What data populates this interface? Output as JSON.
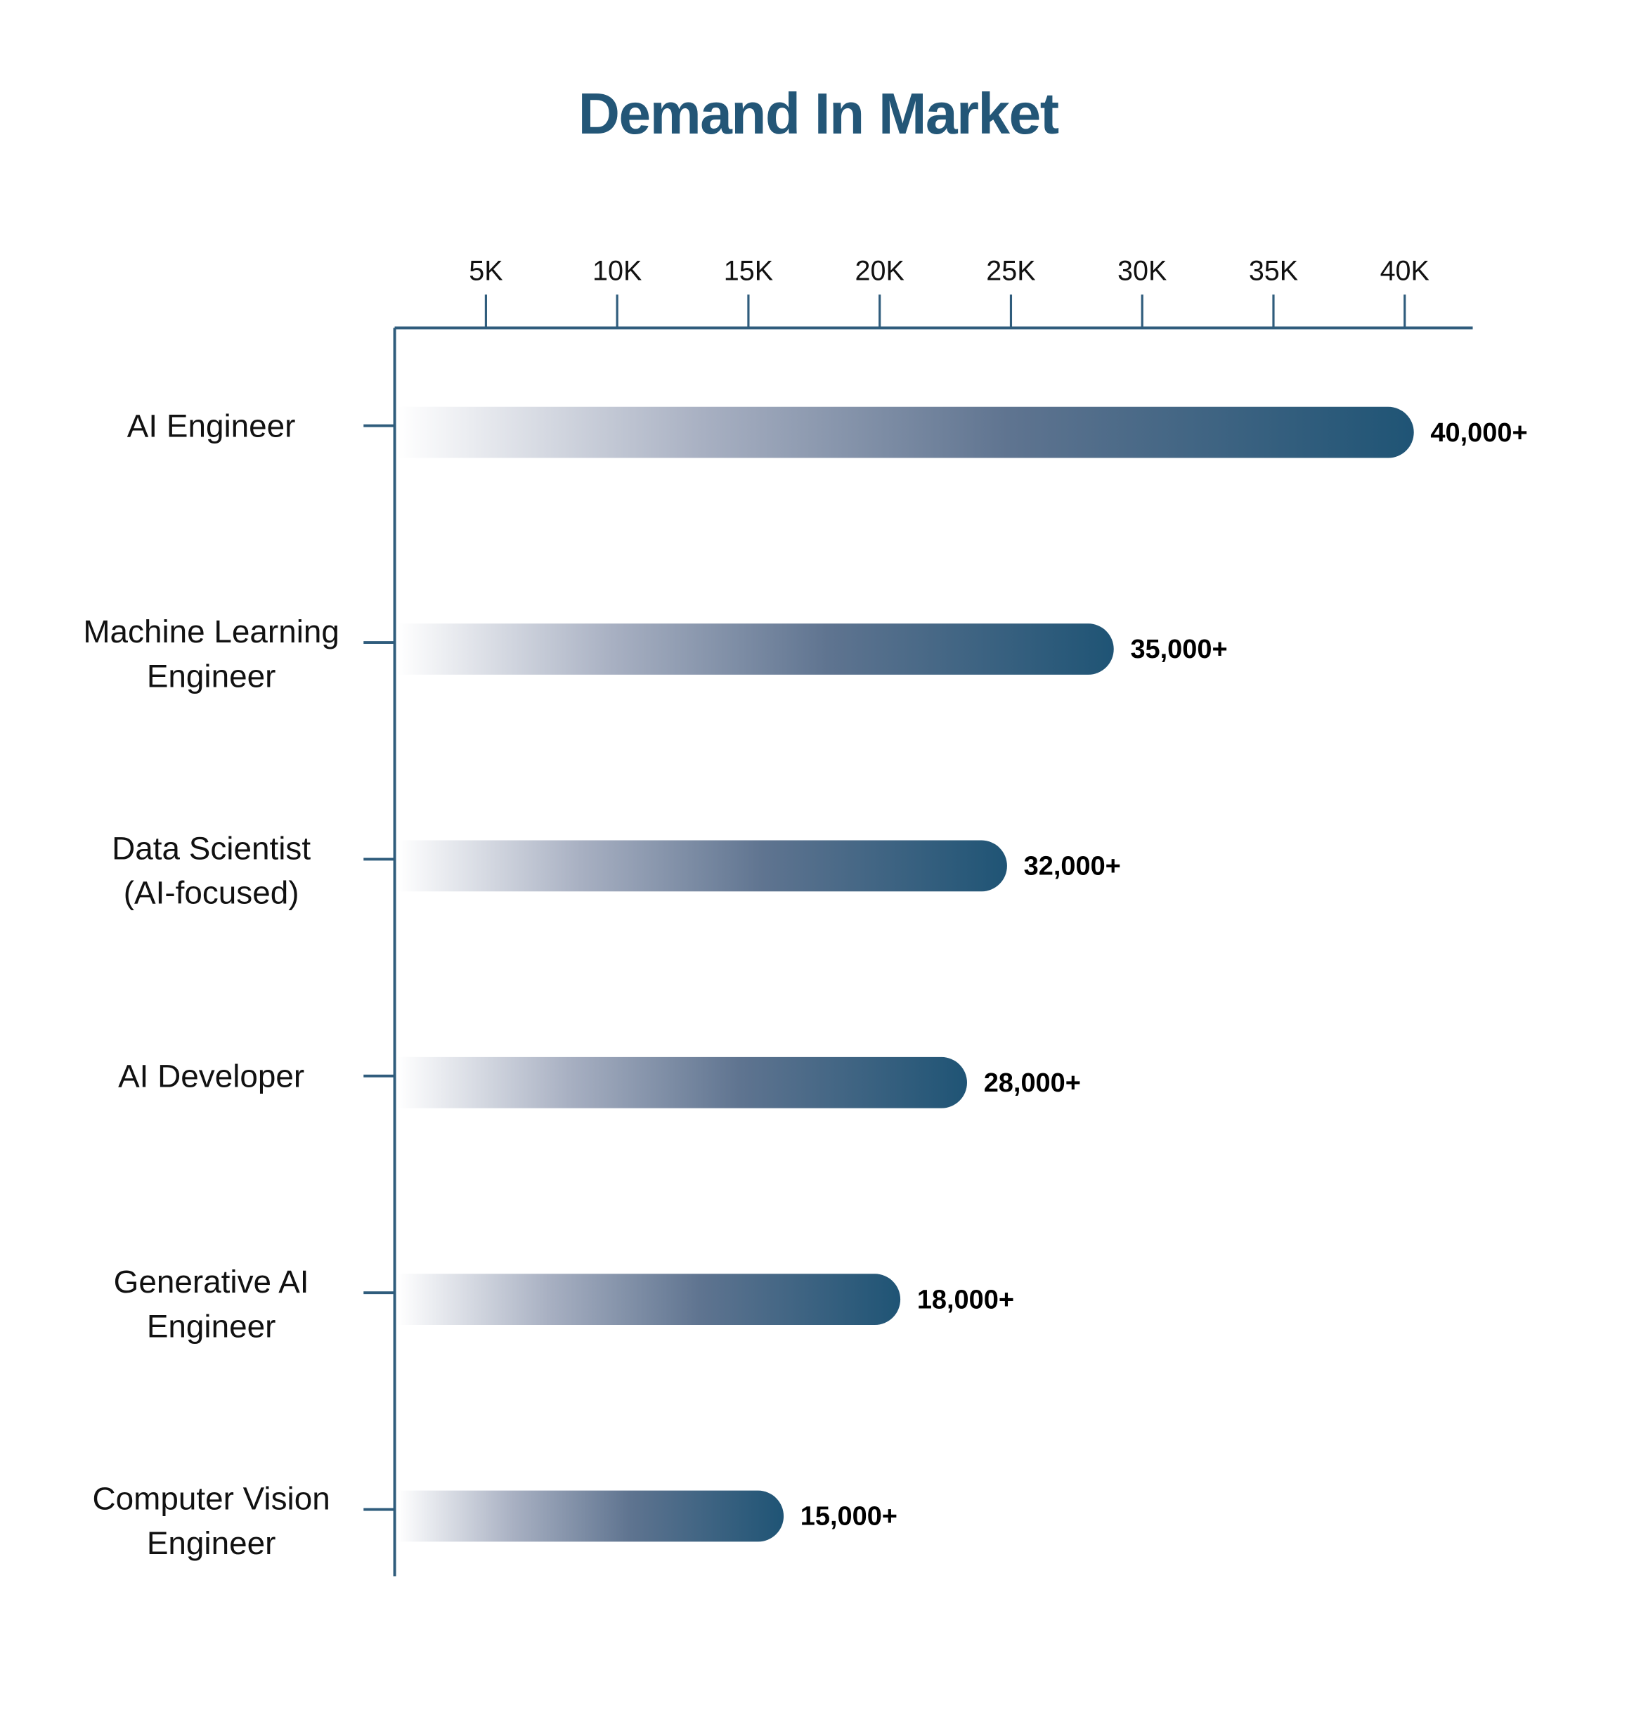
{
  "chart_data": {
    "type": "bar",
    "orientation": "horizontal",
    "title": "Demand In Market",
    "categories": [
      [
        "AI Engineer"
      ],
      [
        "Machine Learning",
        "Engineer"
      ],
      [
        "Data Scientist",
        "(AI-focused)"
      ],
      [
        "AI Developer"
      ],
      [
        "Generative AI",
        "Engineer"
      ],
      [
        "Computer Vision",
        "Engineer"
      ]
    ],
    "values": [
      40000,
      35000,
      32000,
      28000,
      18000,
      15000
    ],
    "data_labels": [
      "40,000+",
      "35,000+",
      "32,000+",
      "28,000+",
      "18,000+",
      "15,000+"
    ],
    "x_ticks": [
      5000,
      10000,
      15000,
      20000,
      25000,
      30000,
      35000,
      40000
    ],
    "x_tick_labels": [
      "5K",
      "10K",
      "15K",
      "20K",
      "25K",
      "30K",
      "35K",
      "40K"
    ],
    "x_axis_position": "top",
    "xlabel": "",
    "ylabel": "",
    "grid": false,
    "legend": "none",
    "colors": {
      "title": "#235677",
      "axis": "#2f5c7c",
      "bar_start": "#ffffff",
      "bar_end": "#1f5475"
    }
  }
}
